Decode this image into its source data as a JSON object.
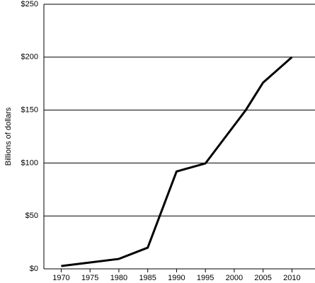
{
  "chart_data": {
    "type": "line",
    "y_label": "Billions of dollars",
    "x": [
      1970,
      1975,
      1980,
      1985,
      1990,
      1995,
      2002,
      2005,
      2010
    ],
    "series": [
      {
        "color": "#000000",
        "values": [
          2.7,
          6,
          9.4,
          20,
          92,
          99.6,
          150,
          176,
          200
        ]
      }
    ],
    "xlim": [
      1967,
      2014
    ],
    "xticks": [
      1970,
      1975,
      1980,
      1985,
      1990,
      1995,
      2000,
      2005,
      2010
    ],
    "ylim": [
      0,
      250
    ],
    "yticks": [
      {
        "value": 0,
        "label": "$0"
      },
      {
        "value": 50,
        "label": "$50"
      },
      {
        "value": 100,
        "label": "$100"
      },
      {
        "value": 150,
        "label": "$150"
      },
      {
        "value": 200,
        "label": "$200"
      },
      {
        "value": 250,
        "label": "$250"
      }
    ],
    "grid": true
  }
}
